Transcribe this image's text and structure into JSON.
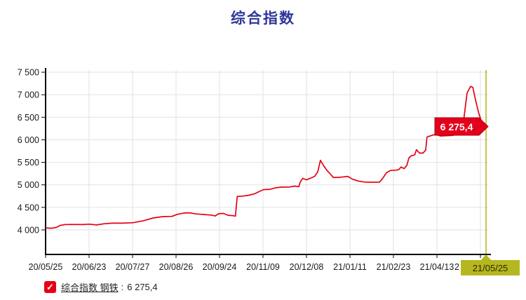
{
  "title": "综合指数",
  "legend": {
    "checkmark": "✓",
    "name": "综合指数 钢铁",
    "colon": ":",
    "value": "6 275,4"
  },
  "chart_data": {
    "type": "line",
    "title": "综合指数",
    "series_name": "综合指数 钢铁",
    "last_value": 6275.4,
    "last_value_label": "6 275,4",
    "x_range": [
      "20/05/25",
      "21/05/25"
    ],
    "x_tick_labels": [
      "20/05/25",
      "20/06/23",
      "20/07/27",
      "20/08/26",
      "20/09/24",
      "20/11/09",
      "20/12/08",
      "21/01/11",
      "21/02/23",
      "21/04/13"
    ],
    "cursor": {
      "label": "21/05/25",
      "covered_fragment": "2",
      "t": 1.0
    },
    "y_ticks": [
      4000,
      4500,
      5000,
      5500,
      6000,
      6500,
      7000,
      7500
    ],
    "y_tick_labels": [
      "4 000",
      "4 500",
      "5 000",
      "5 500",
      "6 000",
      "6 500",
      "7 000",
      "7 500"
    ],
    "ylim": [
      3450,
      7600
    ],
    "grid": true,
    "legend_position": "bottom-left",
    "colors": {
      "line": "#e60014",
      "tag_fill": "#e3001a",
      "tag_border": "#b50010",
      "tag_text": "#ffffff",
      "cursor": "#b6b71e",
      "grid": "#e2e2e2",
      "axis": "#000000",
      "label": "#1a1a1a",
      "title": "#2e3799",
      "legend_checkbox": "#e60014"
    },
    "points": [
      [
        0.0,
        4045
      ],
      [
        0.013,
        4038
      ],
      [
        0.024,
        4055
      ],
      [
        0.033,
        4100
      ],
      [
        0.045,
        4120
      ],
      [
        0.064,
        4122
      ],
      [
        0.084,
        4118
      ],
      [
        0.099,
        4128
      ],
      [
        0.116,
        4110
      ],
      [
        0.132,
        4135
      ],
      [
        0.151,
        4150
      ],
      [
        0.175,
        4150
      ],
      [
        0.199,
        4160
      ],
      [
        0.223,
        4205
      ],
      [
        0.244,
        4265
      ],
      [
        0.266,
        4295
      ],
      [
        0.287,
        4300
      ],
      [
        0.299,
        4345
      ],
      [
        0.314,
        4375
      ],
      [
        0.326,
        4380
      ],
      [
        0.342,
        4355
      ],
      [
        0.361,
        4340
      ],
      [
        0.376,
        4330
      ],
      [
        0.385,
        4310
      ],
      [
        0.393,
        4360
      ],
      [
        0.404,
        4365
      ],
      [
        0.414,
        4325
      ],
      [
        0.425,
        4318
      ],
      [
        0.431,
        4305
      ],
      [
        0.435,
        4740
      ],
      [
        0.449,
        4752
      ],
      [
        0.462,
        4770
      ],
      [
        0.474,
        4800
      ],
      [
        0.486,
        4855
      ],
      [
        0.495,
        4895
      ],
      [
        0.51,
        4900
      ],
      [
        0.522,
        4935
      ],
      [
        0.537,
        4950
      ],
      [
        0.554,
        4952
      ],
      [
        0.565,
        4972
      ],
      [
        0.575,
        4960
      ],
      [
        0.578,
        5060
      ],
      [
        0.584,
        5145
      ],
      [
        0.592,
        5110
      ],
      [
        0.602,
        5150
      ],
      [
        0.611,
        5190
      ],
      [
        0.618,
        5290
      ],
      [
        0.624,
        5545
      ],
      [
        0.631,
        5430
      ],
      [
        0.638,
        5330
      ],
      [
        0.645,
        5255
      ],
      [
        0.653,
        5165
      ],
      [
        0.664,
        5165
      ],
      [
        0.677,
        5178
      ],
      [
        0.686,
        5188
      ],
      [
        0.697,
        5125
      ],
      [
        0.71,
        5085
      ],
      [
        0.724,
        5062
      ],
      [
        0.74,
        5058
      ],
      [
        0.758,
        5060
      ],
      [
        0.764,
        5125
      ],
      [
        0.774,
        5270
      ],
      [
        0.783,
        5320
      ],
      [
        0.795,
        5325
      ],
      [
        0.802,
        5340
      ],
      [
        0.807,
        5395
      ],
      [
        0.814,
        5360
      ],
      [
        0.82,
        5430
      ],
      [
        0.825,
        5600
      ],
      [
        0.831,
        5650
      ],
      [
        0.838,
        5665
      ],
      [
        0.842,
        5780
      ],
      [
        0.849,
        5705
      ],
      [
        0.857,
        5705
      ],
      [
        0.863,
        5775
      ],
      [
        0.866,
        6060
      ],
      [
        0.874,
        6090
      ],
      [
        0.885,
        6120
      ],
      [
        0.897,
        6085
      ],
      [
        0.909,
        6090
      ],
      [
        0.922,
        6095
      ],
      [
        0.932,
        6110
      ],
      [
        0.941,
        6180
      ],
      [
        0.949,
        6420
      ],
      [
        0.957,
        7040
      ],
      [
        0.965,
        7185
      ],
      [
        0.97,
        7165
      ],
      [
        0.976,
        6890
      ],
      [
        0.984,
        6570
      ],
      [
        0.99,
        6400
      ],
      [
        0.995,
        6300
      ],
      [
        1.0,
        6275.4
      ]
    ]
  }
}
